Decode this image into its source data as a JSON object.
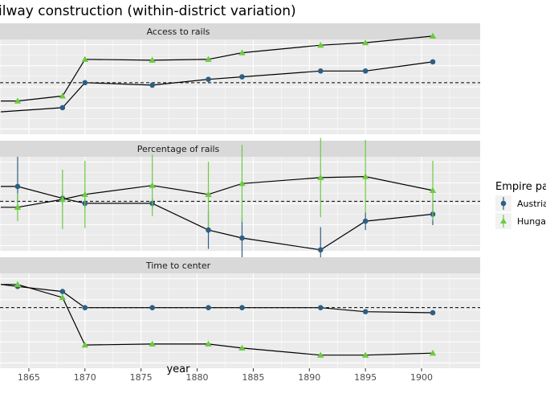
{
  "title": "ilway construction (within-district variation)",
  "colors": {
    "panel_bg": "#EBEBEB",
    "strip_bg": "#D9D9D9",
    "grid_major": "#FFFFFF",
    "austria": "#2D5F82",
    "hungary": "#6CCB3F",
    "line": "#000000"
  },
  "legend": {
    "title": "Empire par",
    "items": [
      {
        "label": "Austria",
        "color": "#2D5F82",
        "shape": "circle"
      },
      {
        "label": "Hungar",
        "color": "#6CCB3F",
        "shape": "triangle"
      }
    ]
  },
  "chart_data": {
    "type": "line",
    "xlabel": "year",
    "x_ticks": [
      1865,
      1870,
      1875,
      1880,
      1885,
      1890,
      1895,
      1900
    ],
    "xlim": [
      1862.5,
      1903.8
    ],
    "grid": true,
    "legend_position": "right",
    "panels": [
      {
        "strip": "Access to rails",
        "ylim": [
          -0.62,
          0.52
        ],
        "ref_line": 0,
        "series": [
          {
            "name": "Austria",
            "marker": "circle",
            "x": [
              1862.5,
              1868,
              1870,
              1876,
              1881,
              1884,
              1891,
              1895,
              1901
            ],
            "y": [
              -0.35,
              -0.3,
              0.0,
              -0.03,
              0.04,
              0.07,
              0.14,
              0.14,
              0.25
            ],
            "ci": [
              null,
              null,
              null,
              null,
              null,
              null,
              null,
              null,
              null
            ]
          },
          {
            "name": "Hungary",
            "marker": "triangle",
            "x": [
              1862.5,
              1864,
              1868,
              1870,
              1876,
              1881,
              1884,
              1891,
              1895,
              1901
            ],
            "y": [
              -0.22,
              -0.22,
              -0.16,
              0.28,
              0.27,
              0.28,
              0.36,
              0.45,
              0.48,
              0.56
            ],
            "ci": [
              null,
              null,
              null,
              null,
              null,
              null,
              null,
              null,
              null,
              null
            ]
          }
        ]
      },
      {
        "strip": "Percentage of rails",
        "ylim": [
          -0.5,
          0.45
        ],
        "ref_line": 0,
        "series": [
          {
            "name": "Austria",
            "marker": "circle",
            "x": [
              1862.5,
              1864,
              1868,
              1870,
              1876,
              1881,
              1884,
              1891,
              1895,
              1901
            ],
            "y": [
              0.15,
              0.15,
              0.03,
              -0.02,
              -0.02,
              -0.29,
              -0.37,
              -0.49,
              -0.2,
              -0.13
            ],
            "ci": [
              null,
              [
                -0.06,
                0.45
              ],
              [
                -0.04,
                0.1
              ],
              [
                -0.07,
                0.03
              ],
              [
                -0.07,
                0.03
              ],
              [
                -0.48,
                -0.1
              ],
              [
                -0.57,
                -0.17
              ],
              [
                -0.72,
                -0.26
              ],
              [
                -0.29,
                -0.11
              ],
              [
                -0.24,
                -0.02
              ]
            ]
          },
          {
            "name": "Hungary",
            "marker": "triangle",
            "x": [
              1862.5,
              1864,
              1868,
              1870,
              1876,
              1881,
              1884,
              1891,
              1895,
              1901
            ],
            "y": [
              -0.06,
              -0.06,
              0.02,
              0.07,
              0.16,
              0.07,
              0.18,
              0.24,
              0.25,
              0.11
            ],
            "ci": [
              null,
              [
                -0.2,
                0.08
              ],
              [
                -0.28,
                0.32
              ],
              [
                -0.27,
                0.41
              ],
              [
                -0.15,
                0.47
              ],
              [
                -0.26,
                0.4
              ],
              [
                -0.21,
                0.57
              ],
              [
                -0.16,
                0.64
              ],
              [
                -0.12,
                0.62
              ],
              [
                -0.19,
                0.41
              ]
            ]
          }
        ]
      },
      {
        "strip": "Time to center",
        "ylim": [
          -0.6,
          0.34
        ],
        "ref_line": 0,
        "series": [
          {
            "name": "Austria",
            "marker": "circle",
            "x": [
              1862.5,
              1864,
              1868,
              1870,
              1876,
              1881,
              1884,
              1891,
              1895,
              1901
            ],
            "y": [
              0.23,
              0.21,
              0.16,
              0.0,
              0.0,
              0.0,
              0.0,
              0.0,
              -0.04,
              -0.05
            ],
            "ci": [
              null,
              null,
              null,
              null,
              null,
              null,
              null,
              null,
              null,
              null
            ]
          },
          {
            "name": "Hungary",
            "marker": "triangle",
            "x": [
              1862.5,
              1864,
              1868,
              1870,
              1876,
              1881,
              1884,
              1891,
              1895,
              1901
            ],
            "y": [
              0.23,
              0.23,
              0.1,
              -0.37,
              -0.36,
              -0.36,
              -0.4,
              -0.47,
              -0.47,
              -0.45
            ],
            "ci": [
              null,
              null,
              null,
              null,
              null,
              null,
              null,
              null,
              null,
              null
            ]
          }
        ]
      }
    ]
  }
}
